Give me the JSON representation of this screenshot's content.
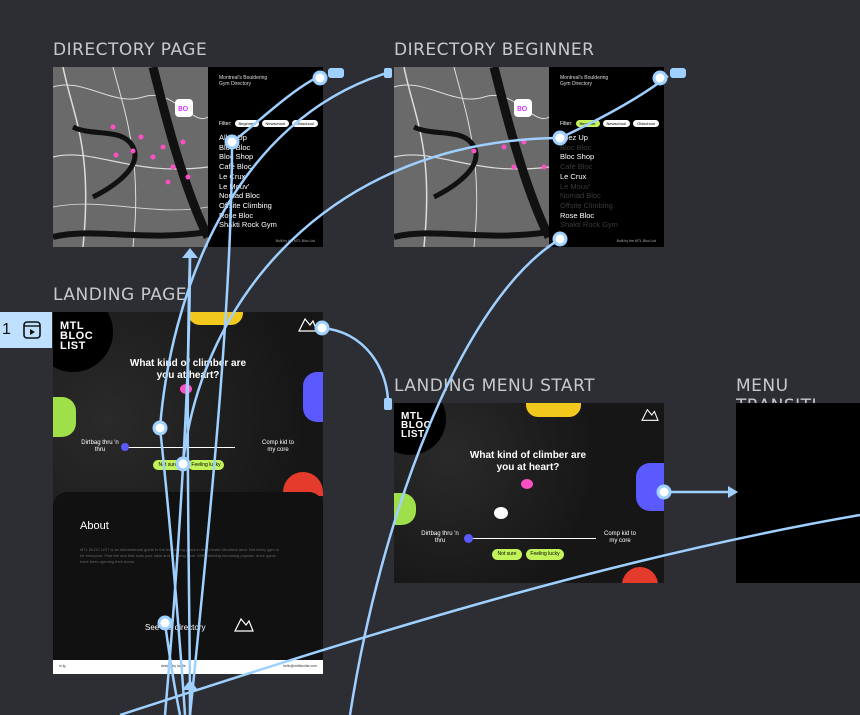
{
  "frames": {
    "directory_page": {
      "title": "DIRECTORY PAGE"
    },
    "directory_beginner": {
      "title": "DIRECTORY BEGINNER"
    },
    "landing_page": {
      "title": "LANDING PAGE"
    },
    "landing_menu_start": {
      "title": "LANDING MENU START"
    },
    "menu_transition": {
      "title": "MENU TRANSITI"
    }
  },
  "directory": {
    "meta": "Montreal's Bouldering Gym Directory",
    "filter_label": "Filter:",
    "filters": [
      "Beginner",
      "Newschool",
      "Oldschool"
    ],
    "footer": "Built by the MTL Bloc List",
    "gyms": [
      "Allez Up",
      "Bloc Bloc",
      "Bloc Shop",
      "Café Bloc",
      "Le Crux",
      "Le Mouv'",
      "Nomad Bloc",
      "Offsite Climbing",
      "Rose Bloc",
      "Shakti Rock Gym"
    ],
    "beginner_gyms": [
      "Allez Up",
      "Bloc Bloc",
      "Bloc Shop",
      "Café Bloc",
      "Le Crux",
      "Le Mouv'",
      "Nomad Bloc",
      "Offsite Climbing",
      "Rose Bloc",
      "Shakti Rock Gym"
    ],
    "beginner_dim": [
      false,
      true,
      false,
      true,
      false,
      true,
      true,
      true,
      false,
      true
    ]
  },
  "landing": {
    "logo": [
      "MTL",
      "BLOC",
      "LIST"
    ],
    "question": "What kind of climber are you at heart?",
    "left_label": "Dirtbag thru 'n thru",
    "right_label": "Comp kid to my core",
    "btn_not_sure": "Not sure",
    "btn_lucky": "Feeling lucky",
    "about_title": "About",
    "about_body": "MTL BLOC LIST is an informational guide to the bouldering gyms in the Greater Montreal area. Not every gym is for everyone. Find the one that suits your style and climbing level. With climbing becoming popular, more gyms have been opening their doors.",
    "see_link": "See the directory",
    "footer_left": "in ig",
    "footer_mid": "design by lucille",
    "footer_right": "hello@mtlbloclist.com"
  },
  "tab_badge": {
    "number": "1"
  },
  "colors": {
    "connector": "#9fd0ff",
    "accent": "#c3f35a",
    "knob": "#5a5aff",
    "pin": "#ff4fc4"
  }
}
